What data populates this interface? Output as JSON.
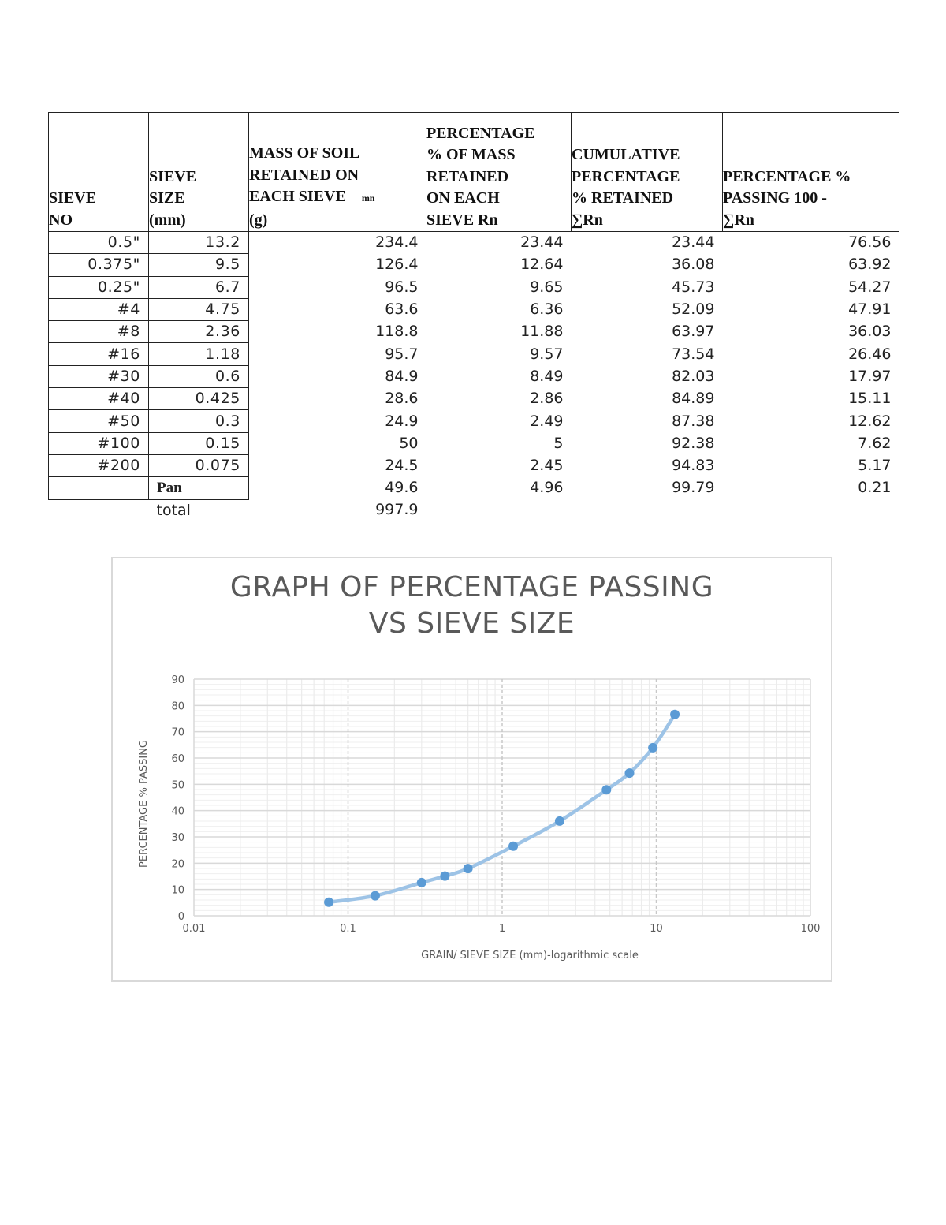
{
  "table": {
    "headers": {
      "sieve_no": [
        "SIEVE",
        "NO"
      ],
      "sieve_size": [
        "SIEVE",
        "SIZE",
        "(mm)"
      ],
      "mass_retained": [
        "MASS OF SOIL",
        "RETAINED ON",
        "EACH SIEVE",
        "(g)"
      ],
      "mass_retained_symbol": "mn",
      "pct_retained": [
        "PERCENTAGE",
        "% OF MASS",
        "RETAINED",
        "ON EACH",
        "SIEVE Rn"
      ],
      "cum_pct_retained": [
        "CUMULATIVE",
        "PERCENTAGE",
        "% RETAINED",
        "∑Rn"
      ],
      "pct_passing": [
        "PERCENTAGE %",
        "PASSING 100 -",
        "∑Rn"
      ]
    },
    "rows": [
      {
        "sieve_no": "0.5\"",
        "size": "13.2",
        "mass": "234.4",
        "pct": "23.44",
        "cum": "23.44",
        "passing": "76.56"
      },
      {
        "sieve_no": "0.375\"",
        "size": "9.5",
        "mass": "126.4",
        "pct": "12.64",
        "cum": "36.08",
        "passing": "63.92"
      },
      {
        "sieve_no": "0.25\"",
        "size": "6.7",
        "mass": "96.5",
        "pct": "9.65",
        "cum": "45.73",
        "passing": "54.27"
      },
      {
        "sieve_no": "#4",
        "size": "4.75",
        "mass": "63.6",
        "pct": "6.36",
        "cum": "52.09",
        "passing": "47.91"
      },
      {
        "sieve_no": "#8",
        "size": "2.36",
        "mass": "118.8",
        "pct": "11.88",
        "cum": "63.97",
        "passing": "36.03"
      },
      {
        "sieve_no": "#16",
        "size": "1.18",
        "mass": "95.7",
        "pct": "9.57",
        "cum": "73.54",
        "passing": "26.46"
      },
      {
        "sieve_no": "#30",
        "size": "0.6",
        "mass": "84.9",
        "pct": "8.49",
        "cum": "82.03",
        "passing": "17.97"
      },
      {
        "sieve_no": "#40",
        "size": "0.425",
        "mass": "28.6",
        "pct": "2.86",
        "cum": "84.89",
        "passing": "15.11"
      },
      {
        "sieve_no": "#50",
        "size": "0.3",
        "mass": "24.9",
        "pct": "2.49",
        "cum": "87.38",
        "passing": "12.62"
      },
      {
        "sieve_no": "#100",
        "size": "0.15",
        "mass": "50",
        "pct": "5",
        "cum": "92.38",
        "passing": "7.62"
      },
      {
        "sieve_no": "#200",
        "size": "0.075",
        "mass": "24.5",
        "pct": "2.45",
        "cum": "94.83",
        "passing": "5.17"
      },
      {
        "sieve_no": "",
        "size": "Pan",
        "mass": "49.6",
        "pct": "4.96",
        "cum": "99.79",
        "passing": "0.21"
      }
    ],
    "total_label": "total",
    "total_value": "997.9"
  },
  "chart_data": {
    "type": "scatter",
    "title": "GRAPH OF PERCENTAGE PASSING VS SIEVE SIZE",
    "title_lines": [
      "GRAPH OF PERCENTAGE PASSING",
      "VS SIEVE SIZE"
    ],
    "xlabel": "GRAIN/ SIEVE SIZE (mm)-logarithmic scale",
    "ylabel": "PERCENTAGE %  PASSING",
    "x_scale": "log",
    "xlim": [
      0.01,
      100
    ],
    "ylim": [
      0,
      90
    ],
    "x_ticks": [
      "0.01",
      "0.1",
      "1",
      "10",
      "100"
    ],
    "y_ticks": [
      "0",
      "10",
      "20",
      "30",
      "40",
      "50",
      "60",
      "70",
      "80",
      "90"
    ],
    "grid": true,
    "legend": "none",
    "series": [
      {
        "name": "Percentage passing",
        "style": "smoothed line with markers",
        "color": "#5b9bd5",
        "line_color": "#9dc3e6",
        "x": [
          13.2,
          9.5,
          6.7,
          4.75,
          2.36,
          1.18,
          0.6,
          0.425,
          0.3,
          0.15,
          0.075
        ],
        "y": [
          76.56,
          63.92,
          54.27,
          47.91,
          36.03,
          26.46,
          17.97,
          15.11,
          12.62,
          7.62,
          5.17
        ]
      }
    ]
  }
}
